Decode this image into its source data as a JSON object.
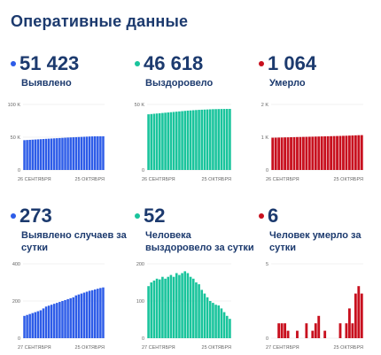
{
  "header": {
    "title": "Оперативные данные"
  },
  "colors": {
    "detected": "#2d5ce8",
    "recovered": "#19c49c",
    "died": "#c8101e",
    "text": "#1c3a6e"
  },
  "panels": [
    {
      "value": "51 423",
      "label": "Выявлено"
    },
    {
      "value": "46 618",
      "label": "Выздоровело"
    },
    {
      "value": "1 064",
      "label": "Умерло"
    },
    {
      "value": "273",
      "label": "Выявлено случаев за сутки"
    },
    {
      "value": "52",
      "label": "Человека выздоровело за сутки"
    },
    {
      "value": "6",
      "label": "Человек умерло за сутки"
    }
  ],
  "chart_data": [
    {
      "type": "bar",
      "color": "#2d5ce8",
      "xlabels": [
        "26 СЕНТЯБРЯ",
        "25 ОКТЯБРЯ"
      ],
      "yticks": [
        "0",
        "50 K",
        "100 K"
      ],
      "ylim": [
        0,
        100000
      ],
      "values": [
        45500,
        45750,
        46000,
        46250,
        46500,
        46750,
        47000,
        47250,
        47500,
        47750,
        48000,
        48250,
        48500,
        48750,
        49000,
        49250,
        49500,
        49700,
        49900,
        50100,
        50300,
        50500,
        50700,
        50900,
        51100,
        51250,
        51350,
        51400,
        51423,
        51423
      ]
    },
    {
      "type": "bar",
      "color": "#19c49c",
      "xlabels": [
        "26 СЕНТЯБРЯ",
        "25 ОКТЯБРЯ"
      ],
      "yticks": [
        "0",
        "50 K"
      ],
      "ylim": [
        0,
        50000
      ],
      "values": [
        42500,
        42700,
        42900,
        43100,
        43300,
        43500,
        43700,
        43900,
        44100,
        44300,
        44500,
        44700,
        44900,
        45100,
        45300,
        45450,
        45600,
        45750,
        45900,
        46000,
        46100,
        46200,
        46300,
        46400,
        46450,
        46500,
        46550,
        46580,
        46600,
        46618
      ]
    },
    {
      "type": "bar",
      "color": "#c8101e",
      "xlabels": [
        "26 СЕНТЯБРЯ",
        "25 ОКТЯБРЯ"
      ],
      "yticks": [
        "0",
        "1 K",
        "2 K"
      ],
      "ylim": [
        0,
        2000
      ],
      "values": [
        985,
        987,
        990,
        992,
        995,
        997,
        1000,
        1002,
        1005,
        1007,
        1010,
        1012,
        1015,
        1017,
        1020,
        1022,
        1025,
        1027,
        1030,
        1032,
        1035,
        1037,
        1040,
        1043,
        1046,
        1050,
        1054,
        1058,
        1062,
        1064
      ]
    },
    {
      "type": "bar",
      "color": "#2d5ce8",
      "xlabels": [
        "27 СЕНТЯБРЯ",
        "25 ОКТЯБРЯ"
      ],
      "yticks": [
        "0",
        "200",
        "400"
      ],
      "ylim": [
        0,
        400
      ],
      "values": [
        120,
        125,
        130,
        135,
        140,
        145,
        150,
        160,
        170,
        175,
        180,
        185,
        190,
        195,
        200,
        205,
        210,
        215,
        220,
        230,
        235,
        240,
        245,
        250,
        255,
        258,
        262,
        266,
        270,
        273
      ]
    },
    {
      "type": "bar",
      "color": "#19c49c",
      "xlabels": [
        "27 СЕНТЯБРЯ",
        "25 ОКТЯБРЯ"
      ],
      "yticks": [
        "0",
        "100",
        "200"
      ],
      "ylim": [
        0,
        200
      ],
      "values": [
        140,
        150,
        155,
        160,
        158,
        165,
        160,
        165,
        170,
        165,
        175,
        170,
        175,
        180,
        175,
        165,
        160,
        150,
        145,
        130,
        120,
        110,
        100,
        95,
        90,
        88,
        80,
        70,
        60,
        52
      ]
    },
    {
      "type": "bar",
      "color": "#c8101e",
      "xlabels": [
        "27 СЕНТЯБРЯ",
        "25 ОКТЯБРЯ"
      ],
      "yticks": [
        "0",
        "5"
      ],
      "ylim": [
        0,
        10
      ],
      "values": [
        0,
        0,
        2,
        2,
        2,
        1,
        0,
        0,
        1,
        0,
        0,
        2,
        0,
        1,
        2,
        3,
        0,
        1,
        0,
        0,
        0,
        0,
        2,
        0,
        2,
        4,
        2,
        6,
        7,
        6
      ]
    }
  ]
}
